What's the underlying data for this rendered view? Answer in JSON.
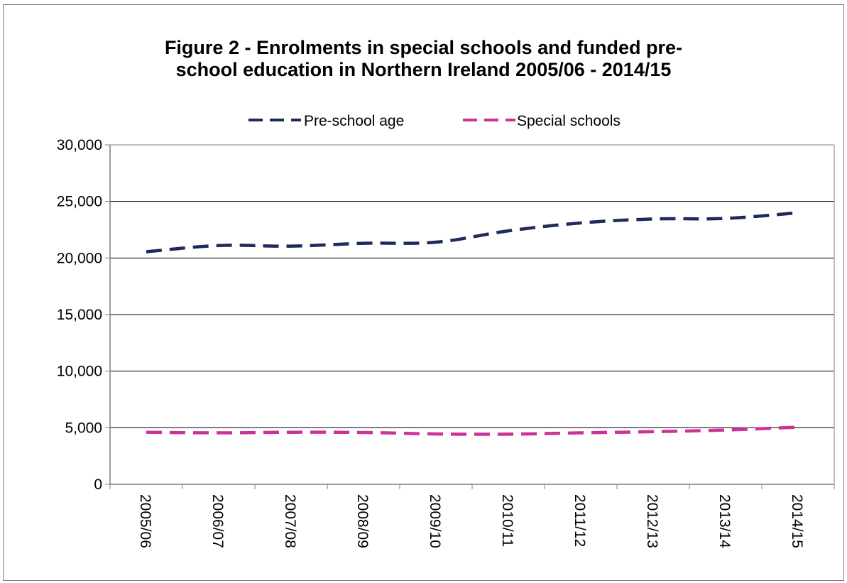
{
  "chart_data": {
    "type": "line",
    "title": "Figure 2 - Enrolments in special schools and funded pre-school education in Northern Ireland 2005/06 - 2014/15",
    "title_lines": [
      "Figure 2 - Enrolments in special schools and funded pre-",
      "school education in Northern Ireland 2005/06 - 2014/15"
    ],
    "xlabel": "",
    "ylabel": "",
    "categories": [
      "2005/06",
      "2006/07",
      "2007/08",
      "2008/09",
      "2009/10",
      "2010/11",
      "2011/12",
      "2012/13",
      "2013/14",
      "2014/15"
    ],
    "series": [
      {
        "name": "Pre-school age",
        "color": "#1f2a5c",
        "line_style": "dashed",
        "values": [
          20550,
          21100,
          21050,
          21300,
          21400,
          22400,
          23100,
          23450,
          23500,
          24000
        ]
      },
      {
        "name": "Special schools",
        "color": "#cc3399",
        "line_style": "dashed",
        "values": [
          4600,
          4550,
          4600,
          4580,
          4450,
          4430,
          4550,
          4650,
          4800,
          5050
        ]
      }
    ],
    "ylim": [
      0,
      30000
    ],
    "yticks": [
      0,
      5000,
      10000,
      15000,
      20000,
      25000,
      30000
    ],
    "ytick_labels": [
      "0",
      "5,000",
      "10,000",
      "15,000",
      "20,000",
      "25,000",
      "30,000"
    ],
    "grid": "horizontal",
    "legend_position": "top-center"
  }
}
